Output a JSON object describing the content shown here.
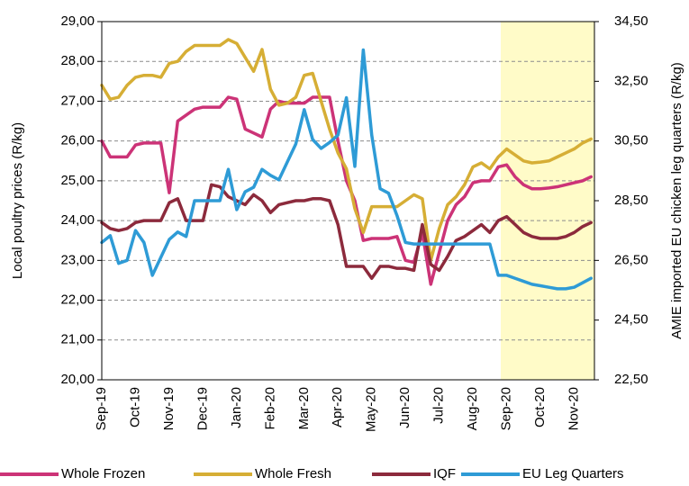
{
  "chart_data": {
    "type": "line",
    "y_label": "Local poultry prices (R/kg)",
    "y2_label": "AMIE imported EU chicken leg quarters (R/kg)",
    "categories": [
      "Sep-19",
      null,
      null,
      null,
      "Oct-19",
      null,
      null,
      null,
      "Nov-19",
      null,
      null,
      null,
      "Dec-19",
      null,
      null,
      null,
      "Jan-20",
      null,
      null,
      null,
      "Feb-20",
      null,
      null,
      null,
      "Mar-20",
      null,
      null,
      null,
      "Apr-20",
      null,
      null,
      null,
      "May-20",
      null,
      null,
      null,
      "Jun-20",
      null,
      null,
      null,
      "Jul-20",
      null,
      null,
      null,
      "Aug-20",
      null,
      null,
      null,
      "Sep-20",
      null,
      null,
      null,
      "Oct-20",
      null,
      null,
      null,
      "Nov-20",
      null,
      null
    ],
    "ylim": [
      20,
      29
    ],
    "yticks": [
      {
        "value": 20,
        "label": "20,00"
      },
      {
        "value": 21,
        "label": "21,00"
      },
      {
        "value": 22,
        "label": "22,00"
      },
      {
        "value": 23,
        "label": "23,00"
      },
      {
        "value": 24,
        "label": "24,00"
      },
      {
        "value": 25,
        "label": "25,00"
      },
      {
        "value": 26,
        "label": "26,00"
      },
      {
        "value": 27,
        "label": "27,00"
      },
      {
        "value": 28,
        "label": "28,00"
      },
      {
        "value": 29,
        "label": "29,00"
      }
    ],
    "y2lim": [
      22.5,
      34.5
    ],
    "y2ticks": [
      {
        "value": 22.5,
        "label": "22,50"
      },
      {
        "value": 24.5,
        "label": "24,50"
      },
      {
        "value": 26.5,
        "label": "26,50"
      },
      {
        "value": 28.5,
        "label": "28,50"
      },
      {
        "value": 30.5,
        "label": "30,50"
      },
      {
        "value": 32.5,
        "label": "32,50"
      },
      {
        "value": 34.5,
        "label": "34,50"
      }
    ],
    "grid": true,
    "legend": "bottom",
    "series": [
      {
        "name": "Whole Frozen",
        "color": "#cc3377",
        "values": [
          26.0,
          25.6,
          25.6,
          25.6,
          25.9,
          25.95,
          25.95,
          25.95,
          24.7,
          26.5,
          26.65,
          26.8,
          26.85,
          26.85,
          26.85,
          27.1,
          27.05,
          26.3,
          26.2,
          26.1,
          26.8,
          27.0,
          26.95,
          26.95,
          26.95,
          27.1,
          27.1,
          27.1,
          26.0,
          25.0,
          24.5,
          23.5,
          23.55,
          23.55,
          23.55,
          23.6,
          23.0,
          22.95,
          23.7,
          22.4,
          23.2,
          24.0,
          24.4,
          24.6,
          24.95,
          25.0,
          25.0,
          25.35,
          25.4,
          25.1,
          24.9,
          24.8,
          24.8,
          24.82,
          24.85,
          24.9,
          24.95,
          25.0,
          25.1
        ]
      },
      {
        "name": "Whole Fresh",
        "color": "#d6ae35",
        "values": [
          27.4,
          27.05,
          27.1,
          27.4,
          27.6,
          27.65,
          27.65,
          27.6,
          27.95,
          28.0,
          28.25,
          28.4,
          28.4,
          28.4,
          28.4,
          28.55,
          28.45,
          28.1,
          27.75,
          28.3,
          27.3,
          26.9,
          26.95,
          27.1,
          27.65,
          27.7,
          27.0,
          26.3,
          25.7,
          25.3,
          24.3,
          23.7,
          24.35,
          24.35,
          24.35,
          24.35,
          24.5,
          24.65,
          24.55,
          23.0,
          23.8,
          24.4,
          24.6,
          24.9,
          25.35,
          25.45,
          25.3,
          25.6,
          25.8,
          25.65,
          25.5,
          25.45,
          25.47,
          25.5,
          25.6,
          25.7,
          25.8,
          25.95,
          26.05
        ]
      },
      {
        "name": "IQF",
        "color": "#8c2a3c",
        "values": [
          23.95,
          23.8,
          23.75,
          23.8,
          23.95,
          24.0,
          24.0,
          24.0,
          24.45,
          24.55,
          24.0,
          24.0,
          24.0,
          24.9,
          24.85,
          24.6,
          24.5,
          24.4,
          24.65,
          24.5,
          24.2,
          24.4,
          24.45,
          24.5,
          24.5,
          24.55,
          24.55,
          24.5,
          23.9,
          22.85,
          22.85,
          22.85,
          22.55,
          22.85,
          22.85,
          22.8,
          22.8,
          22.75,
          23.9,
          22.9,
          22.75,
          23.1,
          23.5,
          23.6,
          23.75,
          23.9,
          23.7,
          24.0,
          24.1,
          23.9,
          23.7,
          23.6,
          23.55,
          23.55,
          23.55,
          23.6,
          23.7,
          23.85,
          23.95
        ]
      },
      {
        "name": "EU Leg Quarters",
        "color": "#2e9bd6",
        "axis": "y2",
        "values": [
          27.1,
          27.33,
          26.4,
          26.5,
          27.5,
          27.1,
          26.0,
          26.6,
          27.2,
          27.45,
          27.3,
          28.5,
          28.5,
          28.5,
          28.5,
          29.55,
          28.2,
          28.8,
          28.95,
          29.55,
          29.35,
          29.2,
          29.8,
          30.4,
          31.55,
          30.55,
          30.25,
          30.45,
          30.7,
          31.95,
          29.65,
          33.55,
          30.7,
          28.9,
          28.75,
          28.0,
          27.1,
          27.05,
          27.05,
          27.05,
          27.05,
          27.05,
          27.05,
          27.05,
          27.05,
          27.05,
          27.05,
          26.0,
          26.0,
          25.9,
          25.8,
          25.7,
          25.65,
          25.6,
          25.55,
          25.55,
          25.6,
          25.75,
          25.9
        ]
      }
    ]
  }
}
